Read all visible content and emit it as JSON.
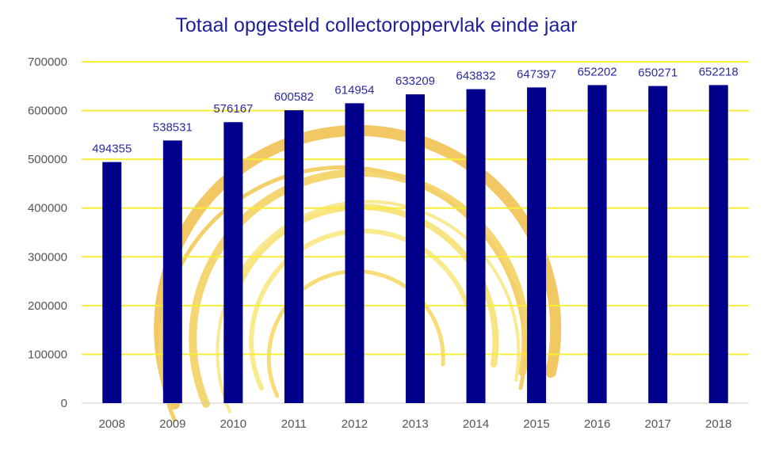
{
  "chart_data": {
    "type": "bar",
    "title": "Totaal opgesteld collectoroppervlak einde jaar",
    "categories": [
      "2008",
      "2009",
      "2010",
      "2011",
      "2012",
      "2013",
      "2014",
      "2015",
      "2016",
      "2017",
      "2018"
    ],
    "values": [
      494355,
      538531,
      576167,
      600582,
      614954,
      633209,
      643832,
      647397,
      652202,
      650271,
      652218
    ],
    "ylim": [
      0,
      700000
    ],
    "yticks": [
      0,
      100000,
      200000,
      300000,
      400000,
      500000,
      600000,
      700000
    ],
    "grid": true,
    "xlabel": "",
    "ylabel": "",
    "colors": {
      "bar": "#00008b",
      "grid": "#f5ef3a",
      "title": "#1f1f9a",
      "data_label": "#2a2aa0",
      "swirl": "#f0c040"
    }
  }
}
